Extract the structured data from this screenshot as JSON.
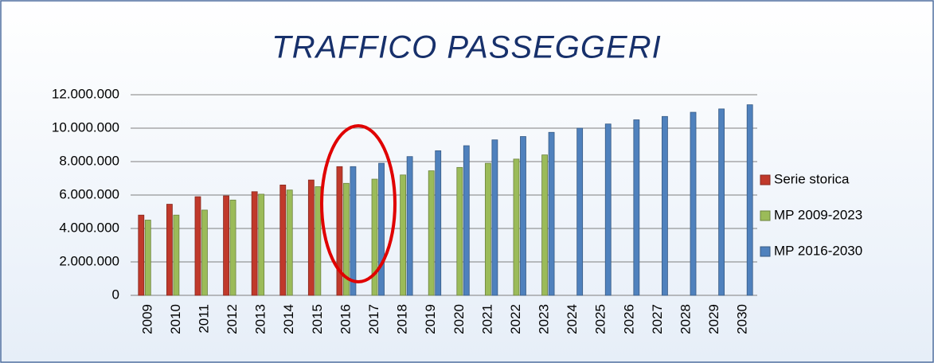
{
  "chart_data": {
    "type": "bar",
    "title": "TRAFFICO PASSEGGERI",
    "categories": [
      "2009",
      "2010",
      "2011",
      "2012",
      "2013",
      "2014",
      "2015",
      "2016",
      "2017",
      "2018",
      "2019",
      "2020",
      "2021",
      "2022",
      "2023",
      "2024",
      "2025",
      "2026",
      "2027",
      "2028",
      "2029",
      "2030"
    ],
    "series": [
      {
        "name": "Serie storica",
        "color": "#c0392b",
        "values": [
          4800000,
          5450000,
          5900000,
          5950000,
          6200000,
          6600000,
          6900000,
          7700000,
          null,
          null,
          null,
          null,
          null,
          null,
          null,
          null,
          null,
          null,
          null,
          null,
          null,
          null
        ]
      },
      {
        "name": "MP 2009-2023",
        "color": "#9bbb59",
        "values": [
          4500000,
          4800000,
          5100000,
          5700000,
          6050000,
          6300000,
          6500000,
          6700000,
          6950000,
          7200000,
          7450000,
          7650000,
          7900000,
          8150000,
          8400000,
          null,
          null,
          null,
          null,
          null,
          null,
          null
        ]
      },
      {
        "name": "MP 2016-2030",
        "color": "#4f81bd",
        "values": [
          null,
          null,
          null,
          null,
          null,
          null,
          null,
          7700000,
          7900000,
          8300000,
          8650000,
          8950000,
          9300000,
          9500000,
          9750000,
          10000000,
          10250000,
          10500000,
          10700000,
          10950000,
          11150000,
          11400000
        ]
      }
    ],
    "ylim": [
      0,
      12000000
    ],
    "yticks": [
      0,
      {
        "value": 2000000,
        "label": "2.000.000"
      },
      {
        "value": 4000000,
        "label": "4.000.000"
      },
      {
        "value": 6000000,
        "label": "6.000.000"
      },
      {
        "value": 8000000,
        "label": "8.000.000"
      },
      {
        "value": 10000000,
        "label": "10.000.000"
      },
      {
        "value": 12000000,
        "label": "12.000.000"
      }
    ],
    "grid": true,
    "legend": "right"
  }
}
